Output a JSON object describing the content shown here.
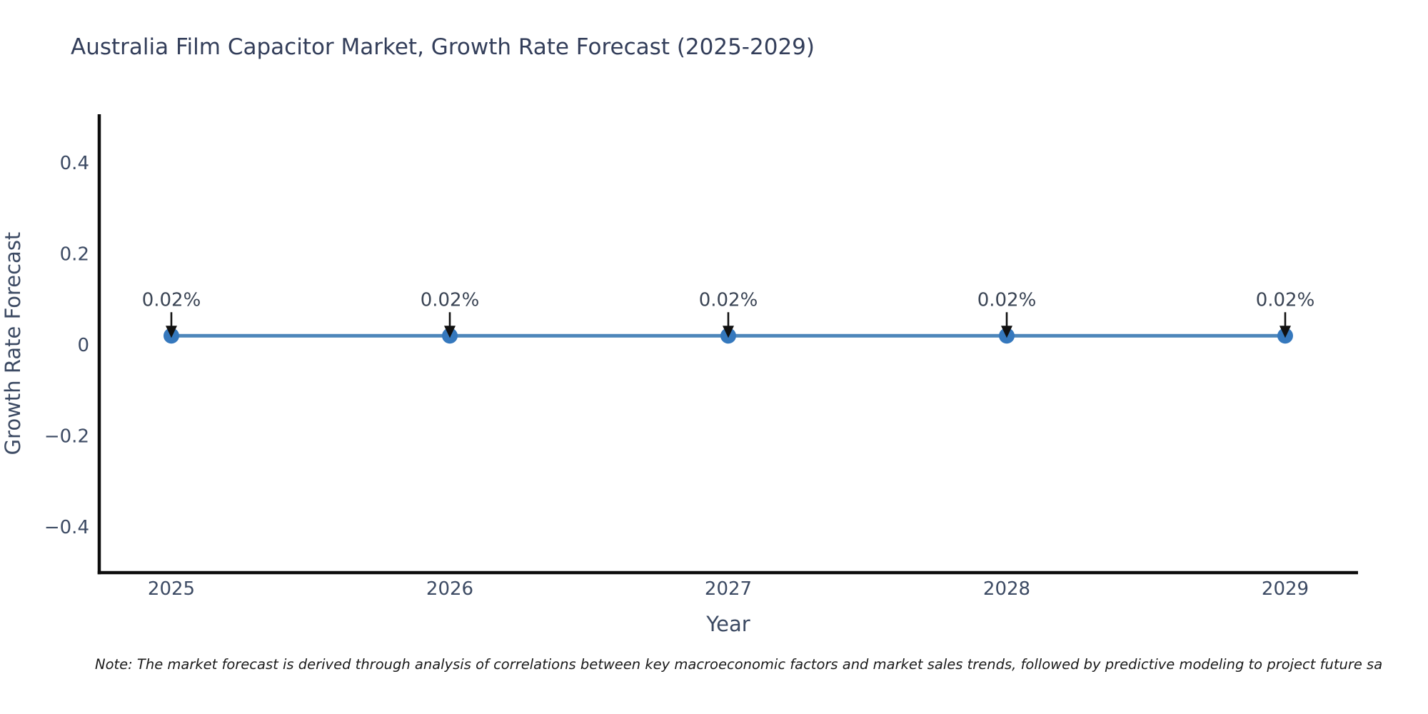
{
  "chart": {
    "title": "Australia Film Capacitor Market, Growth Rate Forecast (2025-2029)",
    "note": "Note: The market forecast is derived through analysis of correlations between key macroeconomic factors and market sales trends, followed by predictive modeling to project future sa"
  },
  "chart_data": {
    "type": "line",
    "title": "Australia Film Capacitor Market, Growth Rate Forecast (2025-2029)",
    "xlabel": "Year",
    "ylabel": "Growth Rate Forecast",
    "categories": [
      "2025",
      "2026",
      "2027",
      "2028",
      "2029"
    ],
    "series": [
      {
        "name": "Growth Rate Forecast",
        "values": [
          0.02,
          0.02,
          0.02,
          0.02,
          0.02
        ],
        "point_labels": [
          "0.02%",
          "0.02%",
          "0.02%",
          "0.02%",
          "0.02%"
        ]
      }
    ],
    "ylim": [
      -0.5,
      0.54
    ],
    "ytick_values": [
      0.4,
      0.2,
      0,
      -0.2,
      -0.4
    ],
    "ytick_labels": [
      "0.4",
      "0.2",
      "0",
      "−0.2",
      "−0.4"
    ],
    "grid": false,
    "legend": false,
    "annotations": "down-arrow from value label to marker",
    "colors": {
      "line": "#4d86ba",
      "marker": "#3578bd",
      "axis": "#0d0d0d",
      "tick_text": "#3c4a63",
      "axis_label_text": "#3c4a63",
      "title_text": "#333e5a",
      "annotation_text": "#3a4454",
      "arrow": "#111111",
      "background": "#ffffff"
    }
  }
}
